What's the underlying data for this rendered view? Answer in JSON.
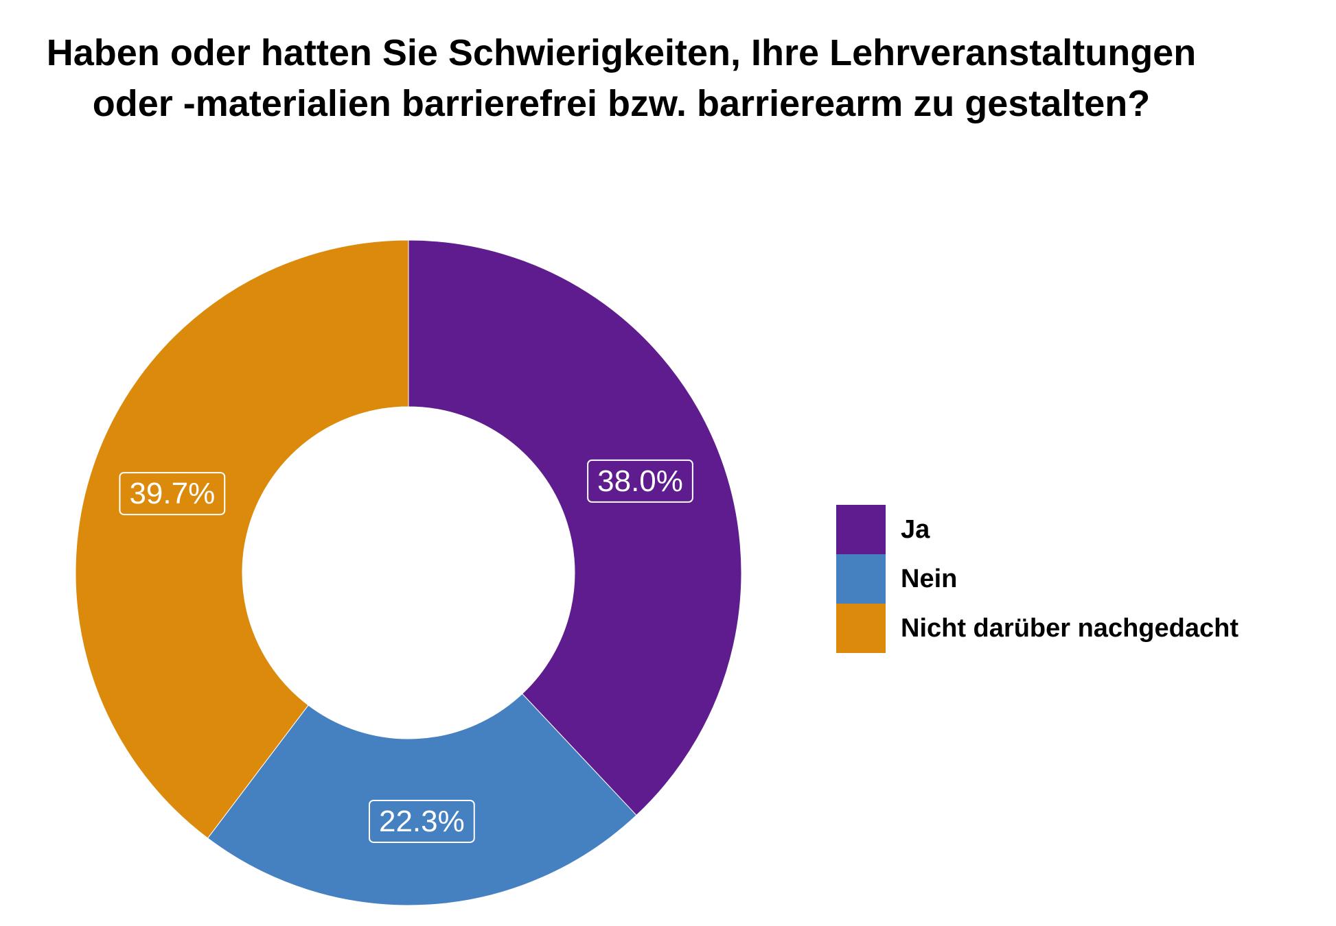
{
  "chart_data": {
    "type": "pie",
    "donut": true,
    "title_lines": [
      "Haben oder hatten Sie Schwierigkeiten, Ihre Lehrveranstaltungen",
      "oder -materialien barrierefrei bzw. barrierearm zu gestalten?"
    ],
    "slices": [
      {
        "name": "Ja",
        "value": 38.0,
        "label": "38.0%",
        "color": "#5E1C8E"
      },
      {
        "name": "Nein",
        "value": 22.3,
        "label": "22.3%",
        "color": "#4580C1"
      },
      {
        "name": "Nicht darüber nachgedacht",
        "value": 39.7,
        "label": "39.7%",
        "color": "#DB8A0C"
      }
    ],
    "legend_placement": "right"
  }
}
